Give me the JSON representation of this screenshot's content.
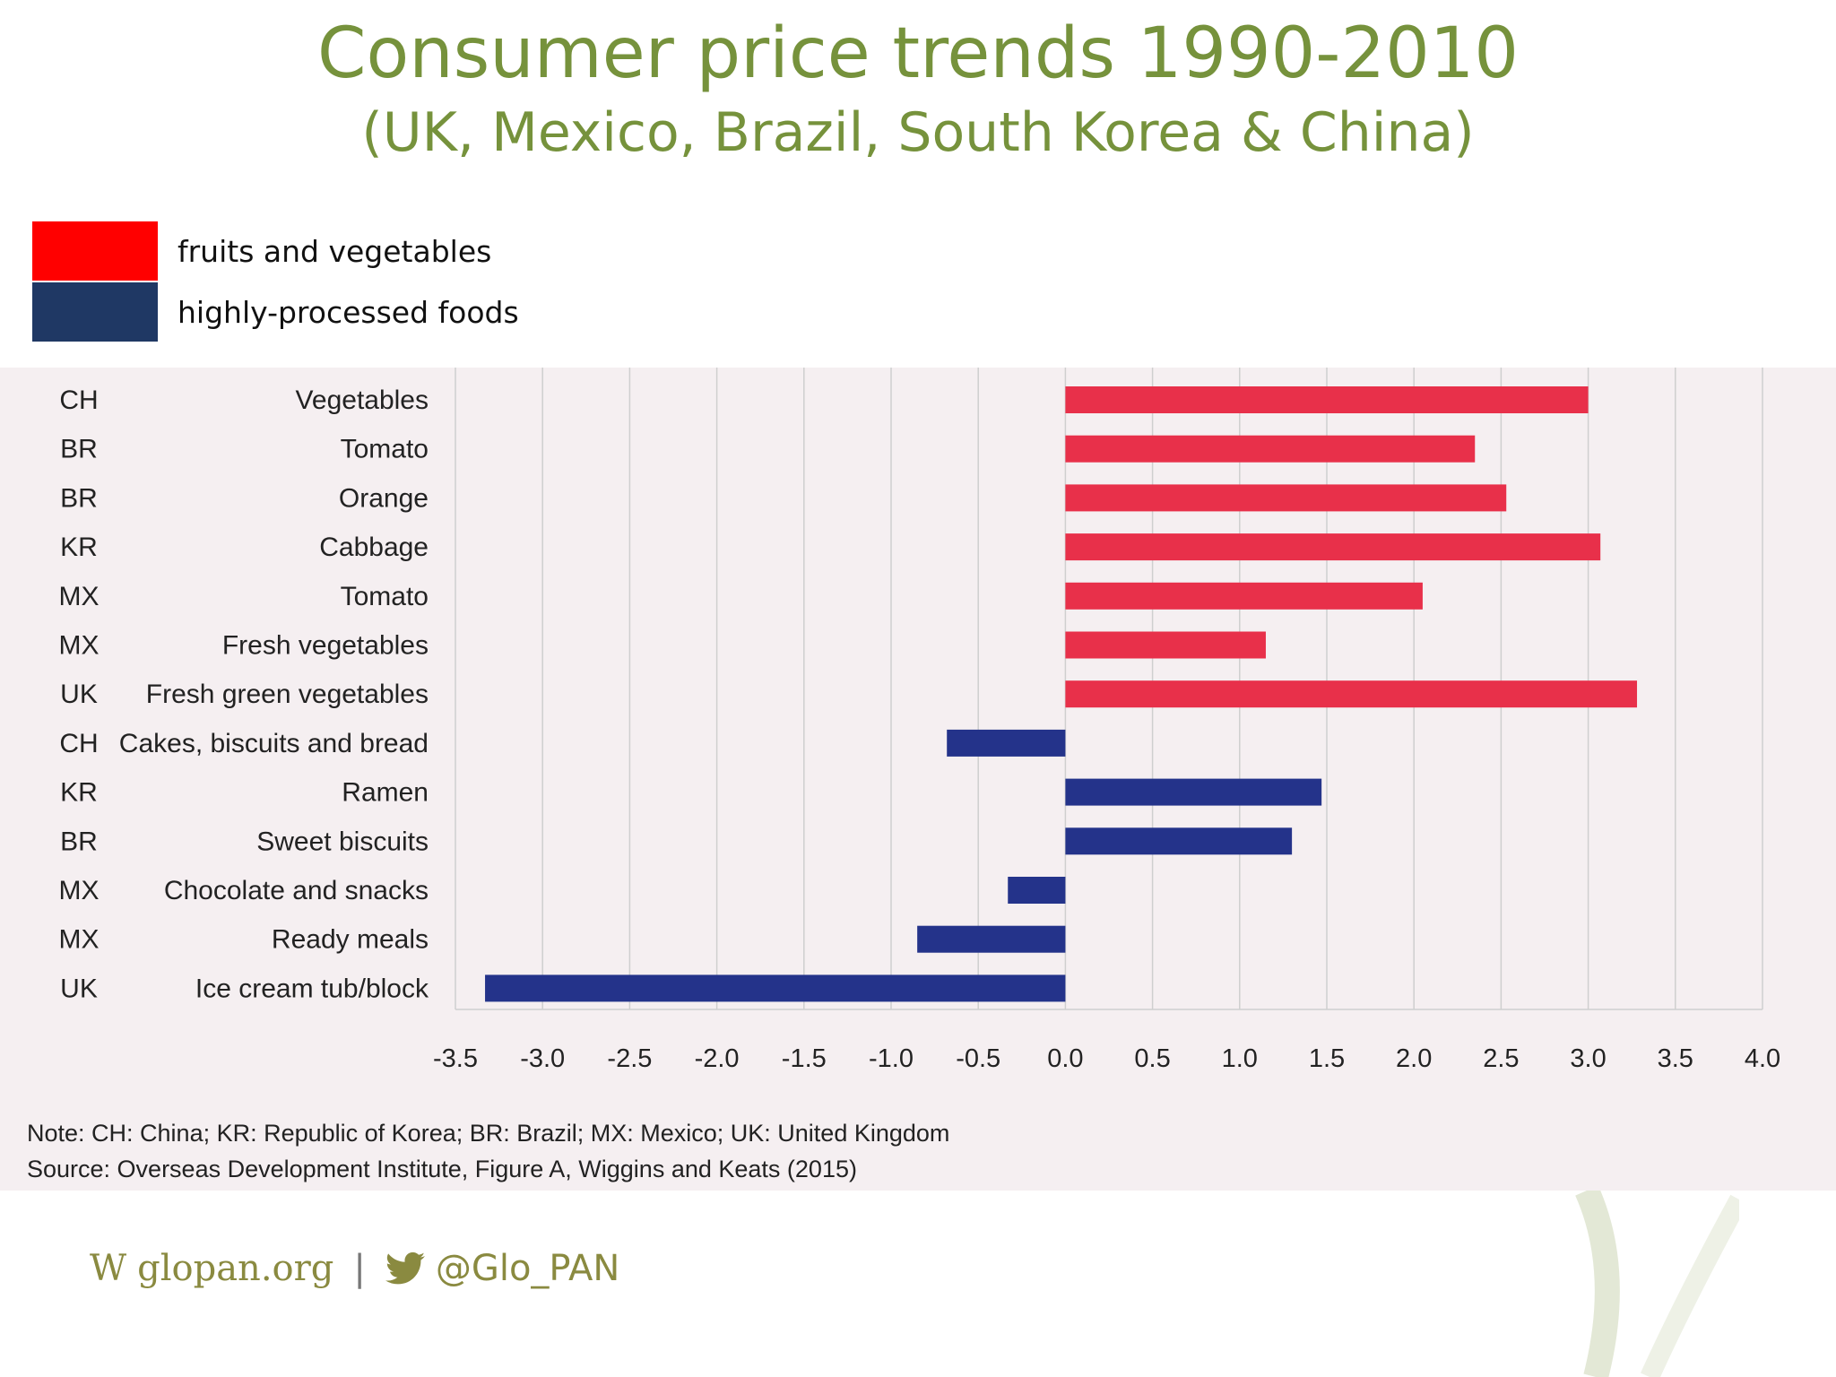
{
  "title": "Consumer price trends 1990-2010",
  "subtitle": "(UK, Mexico, Brazil, South Korea &  China)",
  "colors": {
    "title": "#76923c",
    "fruits": "#e8304a",
    "processed": "#24338a",
    "legend_red": "#ff0000",
    "legend_navy": "#1f3864"
  },
  "legend": [
    {
      "label": "fruits and vegetables",
      "color": "#ff0000"
    },
    {
      "label": "highly-processed foods",
      "color": "#1f3864"
    }
  ],
  "chart_data": {
    "type": "bar",
    "orientation": "horizontal",
    "grid": true,
    "xlim": [
      -3.5,
      4.0
    ],
    "xticks": [
      "-3.5",
      "-3.0",
      "-2.5",
      "-2.0",
      "-1.5",
      "-1.0",
      "-0.5",
      "0.0",
      "0.5",
      "1.0",
      "1.5",
      "2.0",
      "2.5",
      "3.0",
      "3.5",
      "4.0"
    ],
    "rows": [
      {
        "country": "CH",
        "item": "Vegetables",
        "value": 3.0,
        "group": "fruits and vegetables"
      },
      {
        "country": "BR",
        "item": "Tomato",
        "value": 2.35,
        "group": "fruits and vegetables"
      },
      {
        "country": "BR",
        "item": "Orange",
        "value": 2.53,
        "group": "fruits and vegetables"
      },
      {
        "country": "KR",
        "item": "Cabbage",
        "value": 3.07,
        "group": "fruits and vegetables"
      },
      {
        "country": "MX",
        "item": "Tomato",
        "value": 2.05,
        "group": "fruits and vegetables"
      },
      {
        "country": "MX",
        "item": "Fresh vegetables",
        "value": 1.15,
        "group": "fruits and vegetables"
      },
      {
        "country": "UK",
        "item": "Fresh green vegetables",
        "value": 3.28,
        "group": "fruits and vegetables"
      },
      {
        "country": "CH",
        "item": "Cakes, biscuits and bread",
        "value": -0.68,
        "group": "highly-processed foods"
      },
      {
        "country": "KR",
        "item": "Ramen",
        "value": 1.47,
        "group": "highly-processed foods"
      },
      {
        "country": "BR",
        "item": "Sweet biscuits",
        "value": 1.3,
        "group": "highly-processed foods"
      },
      {
        "country": "MX",
        "item": "Chocolate and snacks",
        "value": -0.33,
        "group": "highly-processed foods"
      },
      {
        "country": "MX",
        "item": "Ready meals",
        "value": -0.85,
        "group": "highly-processed foods"
      },
      {
        "country": "UK",
        "item": "Ice cream tub/block",
        "value": -3.33,
        "group": "highly-processed foods"
      }
    ]
  },
  "notes": {
    "note": "Note: CH: China; KR: Republic of Korea; BR: Brazil; MX: Mexico; UK: United Kingdom",
    "source": "Source: Overseas Development Institute, Figure A, Wiggins and Keats (2015)"
  },
  "footer": {
    "web_prefix": "W",
    "website": "glopan.org",
    "separator": "|",
    "twitter_icon": "twitter-bird-icon",
    "handle": "@Glo_PAN"
  }
}
